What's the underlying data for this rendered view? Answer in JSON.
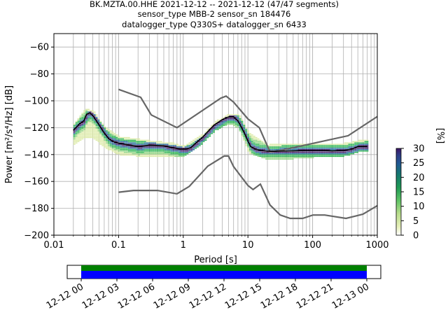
{
  "chart_data": {
    "type": "heatmap",
    "title_lines": [
      "BK.MZTA.00.HHE   2021-12-12 -- 2021-12-12  (47/47 segments)",
      "sensor_type MBB-2 sensor_sn 184476",
      "datalogger_type Q330S+ datalogger_sn 6433"
    ],
    "xlabel": "Period [s]",
    "ylabel": "Power [m²/s⁴/Hz] [dB]",
    "xscale": "log",
    "xlim": [
      0.01,
      1000
    ],
    "ylim": [
      -200,
      -50
    ],
    "x_ticks": [
      "0.01",
      "0.1",
      "1",
      "10",
      "100",
      "1000"
    ],
    "y_ticks": [
      "−60",
      "−80",
      "−100",
      "−120",
      "−140",
      "−160",
      "−180",
      "−200"
    ],
    "grid": true,
    "colorbar": {
      "label": "[%]",
      "range": [
        0,
        30
      ],
      "ticks": [
        "0",
        "5",
        "10",
        "15",
        "20",
        "25",
        "30"
      ],
      "colormap": "pqlx"
    },
    "noise_model_high": [
      [
        0.1,
        -91.5
      ],
      [
        0.22,
        -97.4
      ],
      [
        0.32,
        -110.5
      ],
      [
        0.8,
        -120
      ],
      [
        3.8,
        -98
      ],
      [
        4.6,
        -96.5
      ],
      [
        6,
        -101
      ],
      [
        10,
        -113.5
      ],
      [
        15,
        -120
      ],
      [
        21.9,
        -138
      ],
      [
        31.6,
        -137
      ],
      [
        354,
        -126
      ],
      [
        10000,
        -80
      ]
    ],
    "noise_model_low": [
      [
        0.1,
        -168
      ],
      [
        0.17,
        -166.7
      ],
      [
        0.4,
        -166.7
      ],
      [
        0.8,
        -169.2
      ],
      [
        1.24,
        -163.7
      ],
      [
        2.4,
        -148.6
      ],
      [
        4.3,
        -141.1
      ],
      [
        5,
        -141.1
      ],
      [
        6,
        -149
      ],
      [
        10,
        -163
      ],
      [
        12,
        -166
      ],
      [
        15.6,
        -162
      ],
      [
        21.9,
        -177.5
      ],
      [
        31.6,
        -185
      ],
      [
        45,
        -187.5
      ],
      [
        70,
        -187.5
      ],
      [
        101,
        -185
      ],
      [
        154,
        -185
      ],
      [
        328,
        -187.5
      ],
      [
        600,
        -184.4
      ],
      [
        1000,
        -178
      ]
    ],
    "median_psd": [
      [
        0.02,
        -122
      ],
      [
        0.025,
        -117
      ],
      [
        0.029,
        -115
      ],
      [
        0.032,
        -110
      ],
      [
        0.036,
        -109
      ],
      [
        0.04,
        -111
      ],
      [
        0.05,
        -118
      ],
      [
        0.06,
        -124
      ],
      [
        0.07,
        -128
      ],
      [
        0.08,
        -130
      ],
      [
        0.1,
        -131.5
      ],
      [
        0.15,
        -133
      ],
      [
        0.2,
        -134
      ],
      [
        0.3,
        -133
      ],
      [
        0.5,
        -133.5
      ],
      [
        0.7,
        -135
      ],
      [
        0.9,
        -136
      ],
      [
        1.1,
        -136
      ],
      [
        1.3,
        -135
      ],
      [
        1.6,
        -131
      ],
      [
        2,
        -127
      ],
      [
        2.5,
        -122
      ],
      [
        3,
        -118
      ],
      [
        4,
        -114
      ],
      [
        5,
        -112
      ],
      [
        6,
        -112
      ],
      [
        7,
        -115
      ],
      [
        8,
        -120
      ],
      [
        9,
        -125
      ],
      [
        10,
        -130
      ],
      [
        11,
        -134
      ],
      [
        13,
        -136
      ],
      [
        16,
        -137
      ],
      [
        20,
        -137.5
      ],
      [
        30,
        -137.5
      ],
      [
        50,
        -137.3
      ],
      [
        80,
        -137
      ],
      [
        100,
        -137
      ],
      [
        150,
        -137
      ],
      [
        200,
        -137.3
      ],
      [
        300,
        -137
      ],
      [
        400,
        -136
      ],
      [
        450,
        -135
      ],
      [
        500,
        -134
      ],
      [
        700,
        -134
      ]
    ],
    "psd_band_low": [
      [
        0.02,
        -132
      ],
      [
        0.03,
        -126
      ],
      [
        0.04,
        -127
      ],
      [
        0.06,
        -134
      ],
      [
        0.1,
        -139
      ],
      [
        0.3,
        -141
      ],
      [
        0.7,
        -141
      ],
      [
        1,
        -140
      ],
      [
        2,
        -130
      ],
      [
        3,
        -121
      ],
      [
        5,
        -116
      ],
      [
        7,
        -119
      ],
      [
        10,
        -138
      ],
      [
        20,
        -143
      ],
      [
        50,
        -142
      ],
      [
        100,
        -141
      ],
      [
        300,
        -140
      ],
      [
        500,
        -137
      ],
      [
        700,
        -137
      ]
    ],
    "psd_band_high": [
      [
        0.02,
        -117
      ],
      [
        0.03,
        -106
      ],
      [
        0.04,
        -108
      ],
      [
        0.06,
        -120
      ],
      [
        0.1,
        -127
      ],
      [
        0.3,
        -130
      ],
      [
        0.7,
        -132
      ],
      [
        1,
        -134
      ],
      [
        2,
        -125
      ],
      [
        3,
        -116
      ],
      [
        5,
        -110
      ],
      [
        7,
        -110
      ],
      [
        10,
        -124
      ],
      [
        20,
        -133
      ],
      [
        50,
        -132
      ],
      [
        100,
        -132
      ],
      [
        300,
        -132
      ],
      [
        500,
        -130
      ],
      [
        700,
        -129
      ]
    ]
  },
  "timeline": {
    "tick_labels": [
      "12-12 00",
      "12-12 03",
      "12-12 06",
      "12-12 09",
      "12-12 12",
      "12-12 15",
      "12-12 18",
      "12-12 21",
      "12-13 00"
    ],
    "coverage_colors": [
      "#008000",
      "#0000ff"
    ],
    "coverage_label": "47/47 segments"
  },
  "colors": {
    "noise_model": "#666666",
    "median": "#000000",
    "grid": "#b0b0b0",
    "cmap": [
      "#ffffff",
      "#dceaa6",
      "#8ed37f",
      "#27b24e",
      "#0e8a6b",
      "#1e6996",
      "#2c3e8c",
      "#3c1464"
    ]
  }
}
